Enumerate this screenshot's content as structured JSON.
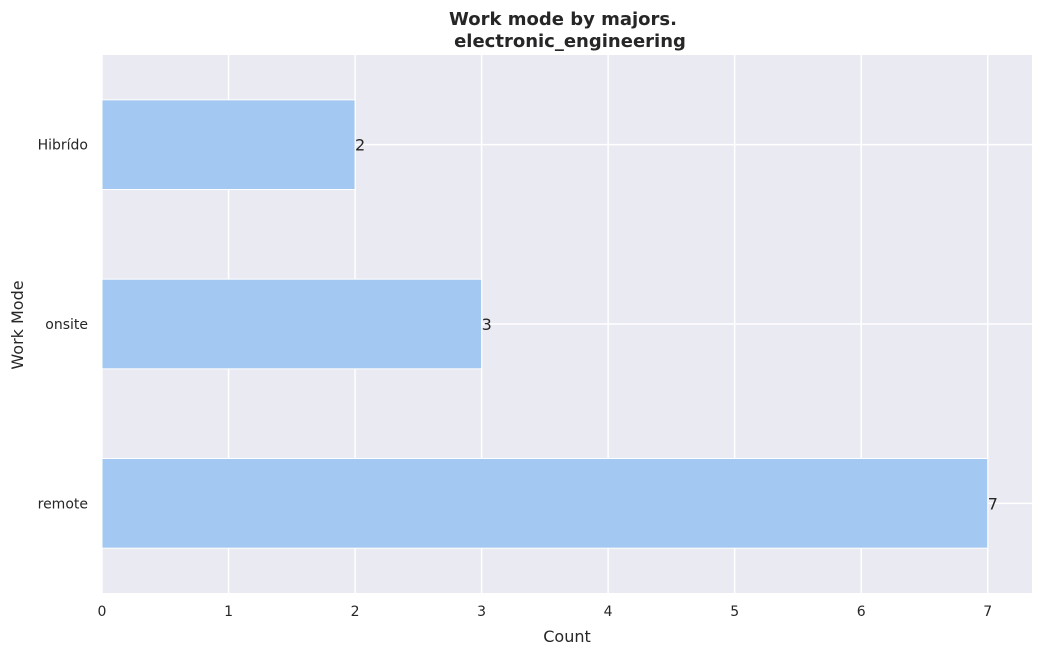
{
  "chart_data": {
    "type": "bar",
    "orientation": "horizontal",
    "title": "Work mode by majors.",
    "subtitle": "electronic_engineering",
    "xlabel": "Count",
    "ylabel": "Work Mode",
    "categories": [
      "Hibrído",
      "onsite",
      "remote"
    ],
    "values": [
      2,
      3,
      7
    ],
    "data_labels": [
      "2",
      "3",
      "7"
    ],
    "xlim": [
      0,
      7.35
    ],
    "xticks": [
      0,
      1,
      2,
      3,
      4,
      5,
      6,
      7
    ],
    "xtick_labels": [
      "0",
      "1",
      "2",
      "3",
      "4",
      "5",
      "6",
      "7"
    ],
    "grid": true,
    "colors": {
      "bar": "#a3c8f2",
      "plot_background": "#eaeaf2",
      "grid": "#ffffff",
      "text": "#262626"
    }
  }
}
